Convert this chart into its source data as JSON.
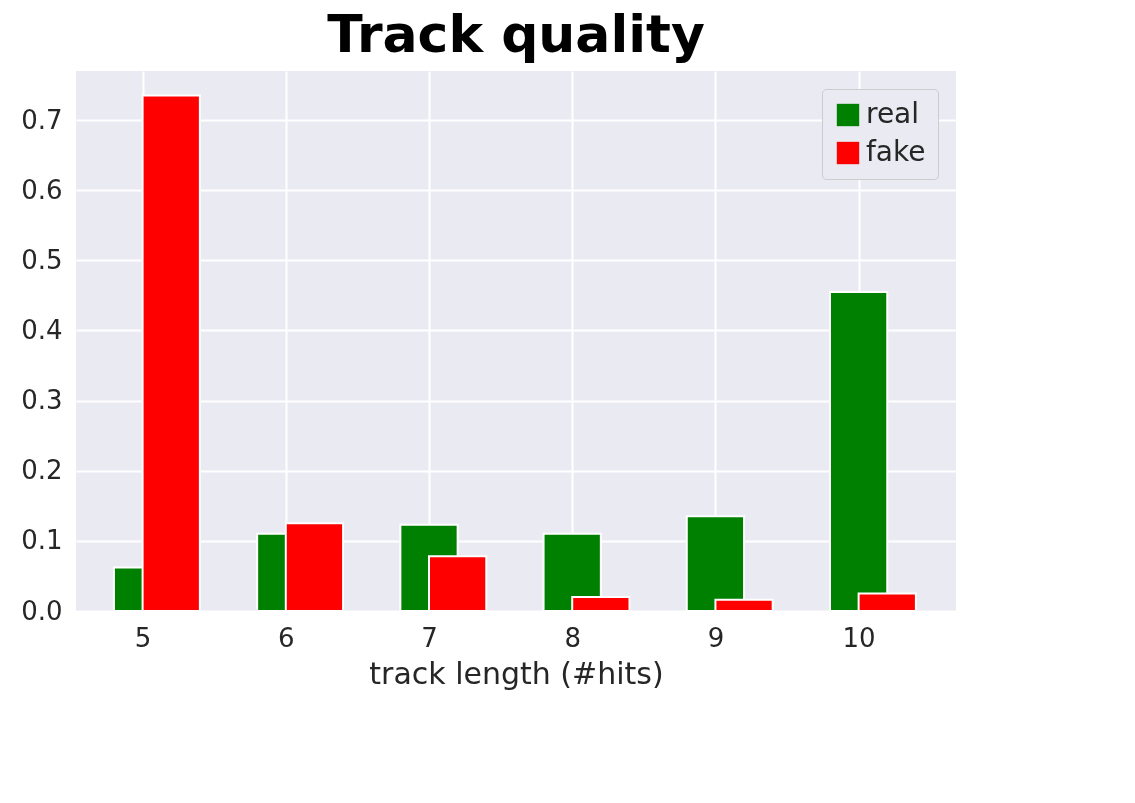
{
  "chart_data": {
    "type": "bar",
    "title": "Track quality",
    "xlabel": "track length (#hits)",
    "x": [
      5,
      6,
      7,
      8,
      9,
      10
    ],
    "series": [
      {
        "name": "real",
        "color": "#008000",
        "values": [
          0.062,
          0.11,
          0.123,
          0.11,
          0.135,
          0.455
        ]
      },
      {
        "name": "fake",
        "color": "#ff0000",
        "values": [
          0.735,
          0.125,
          0.078,
          0.02,
          0.016,
          0.025
        ]
      }
    ],
    "xlim": [
      4.535,
      10.68
    ],
    "xticks": [
      5,
      6,
      7,
      8,
      9,
      10
    ],
    "ylim": [
      0,
      0.77
    ],
    "yticks": [
      {
        "value": 0,
        "label": "0.0"
      },
      0.1,
      0.2,
      0.3,
      0.4,
      0.5,
      0.6,
      0.7
    ],
    "grid": true,
    "legend": "top right"
  }
}
